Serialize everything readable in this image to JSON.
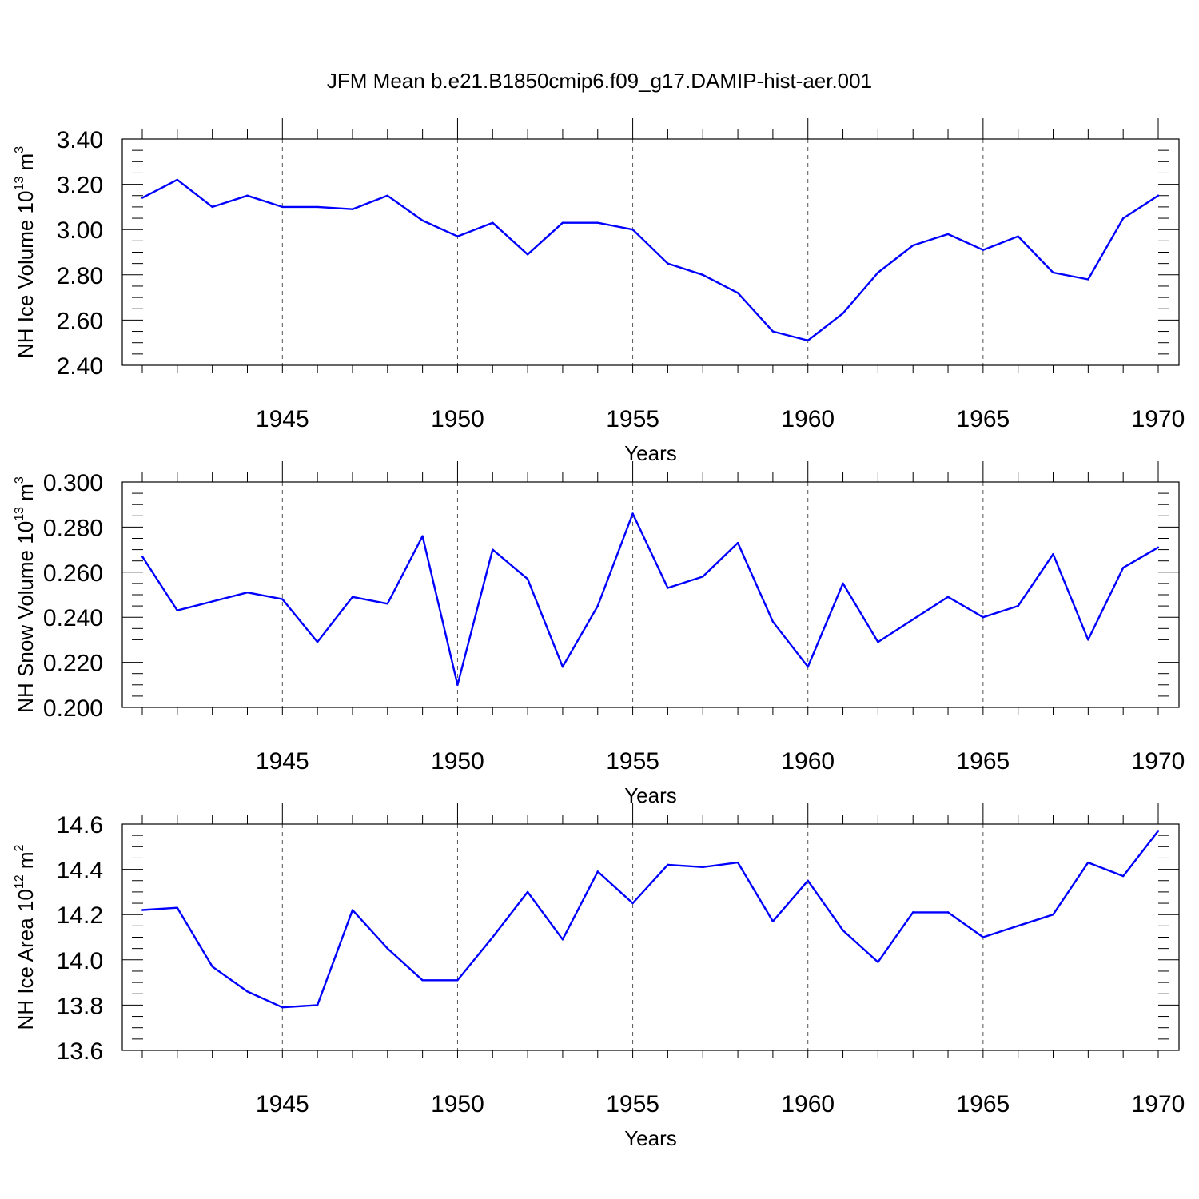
{
  "title": "JFM Mean b.e21.B1850cmip6.f09_g17.DAMIP-hist-aer.001",
  "colors": {
    "line": "#0000ff",
    "axis": "#000000",
    "grid": "#555555"
  },
  "chart_data": [
    {
      "type": "line",
      "xlabel": "Years",
      "ylabel": "NH Ice Volume 10",
      "ylabel_exp": "13",
      "ylabel_unit": " m",
      "ylabel_unit_exp": "3",
      "xlim": [
        1941,
        1970
      ],
      "ylim": [
        2.4,
        3.4
      ],
      "xticks": [
        1945,
        1950,
        1955,
        1960,
        1965,
        1970
      ],
      "xtick_labels": [
        "1945",
        "1950",
        "1955",
        "1960",
        "1965",
        "1970"
      ],
      "yticks": [
        2.4,
        2.6,
        2.8,
        3.0,
        3.2,
        3.4
      ],
      "ytick_labels": [
        "2.40",
        "2.60",
        "2.80",
        "3.00",
        "3.20",
        "3.40"
      ],
      "grid": "dashed vertical at major x ticks",
      "x": [
        1941,
        1942,
        1943,
        1944,
        1945,
        1946,
        1947,
        1948,
        1949,
        1950,
        1951,
        1952,
        1953,
        1954,
        1955,
        1956,
        1957,
        1958,
        1959,
        1960,
        1961,
        1962,
        1963,
        1964,
        1965,
        1966,
        1967,
        1968,
        1969,
        1970
      ],
      "values": [
        3.14,
        3.22,
        3.1,
        3.15,
        3.1,
        3.1,
        3.09,
        3.15,
        3.04,
        2.97,
        3.03,
        2.89,
        3.03,
        3.03,
        3.0,
        2.85,
        2.8,
        2.72,
        2.55,
        2.51,
        2.63,
        2.81,
        2.93,
        2.98,
        2.91,
        2.97,
        2.81,
        2.78,
        3.05,
        3.15
      ]
    },
    {
      "type": "line",
      "xlabel": "Years",
      "ylabel": "NH Snow Volume 10",
      "ylabel_exp": "13",
      "ylabel_unit": " m",
      "ylabel_unit_exp": "3",
      "xlim": [
        1941,
        1970
      ],
      "ylim": [
        0.2,
        0.3
      ],
      "xticks": [
        1945,
        1950,
        1955,
        1960,
        1965,
        1970
      ],
      "xtick_labels": [
        "1945",
        "1950",
        "1955",
        "1960",
        "1965",
        "1970"
      ],
      "yticks": [
        0.2,
        0.22,
        0.24,
        0.26,
        0.28,
        0.3
      ],
      "ytick_labels": [
        "0.200",
        "0.220",
        "0.240",
        "0.260",
        "0.280",
        "0.300"
      ],
      "grid": "dashed vertical at major x ticks",
      "x": [
        1941,
        1942,
        1943,
        1944,
        1945,
        1946,
        1947,
        1948,
        1949,
        1950,
        1951,
        1952,
        1953,
        1954,
        1955,
        1956,
        1957,
        1958,
        1959,
        1960,
        1961,
        1962,
        1963,
        1964,
        1965,
        1966,
        1967,
        1968,
        1969,
        1970
      ],
      "values": [
        0.267,
        0.243,
        0.247,
        0.251,
        0.248,
        0.229,
        0.249,
        0.246,
        0.276,
        0.21,
        0.27,
        0.257,
        0.218,
        0.245,
        0.286,
        0.253,
        0.258,
        0.273,
        0.238,
        0.218,
        0.255,
        0.229,
        0.239,
        0.249,
        0.24,
        0.245,
        0.268,
        0.23,
        0.262,
        0.271
      ]
    },
    {
      "type": "line",
      "xlabel": "Years",
      "ylabel": "NH Ice Area 10",
      "ylabel_exp": "12",
      "ylabel_unit": " m",
      "ylabel_unit_exp": "2",
      "xlim": [
        1941,
        1970
      ],
      "ylim": [
        13.6,
        14.6
      ],
      "xticks": [
        1945,
        1950,
        1955,
        1960,
        1965,
        1970
      ],
      "xtick_labels": [
        "1945",
        "1950",
        "1955",
        "1960",
        "1965",
        "1970"
      ],
      "yticks": [
        13.6,
        13.8,
        14.0,
        14.2,
        14.4,
        14.6
      ],
      "ytick_labels": [
        "13.6",
        "13.8",
        "14.0",
        "14.2",
        "14.4",
        "14.6"
      ],
      "grid": "dashed vertical at major x ticks",
      "x": [
        1941,
        1942,
        1943,
        1944,
        1945,
        1946,
        1947,
        1948,
        1949,
        1950,
        1951,
        1952,
        1953,
        1954,
        1955,
        1956,
        1957,
        1958,
        1959,
        1960,
        1961,
        1962,
        1963,
        1964,
        1965,
        1966,
        1967,
        1968,
        1969,
        1970
      ],
      "values": [
        14.22,
        14.23,
        13.97,
        13.86,
        13.79,
        13.8,
        14.22,
        14.05,
        13.91,
        13.91,
        14.1,
        14.3,
        14.09,
        14.39,
        14.25,
        14.42,
        14.41,
        14.43,
        14.17,
        14.35,
        14.13,
        13.99,
        14.21,
        14.21,
        14.1,
        14.15,
        14.2,
        14.43,
        14.37,
        14.57
      ]
    }
  ]
}
